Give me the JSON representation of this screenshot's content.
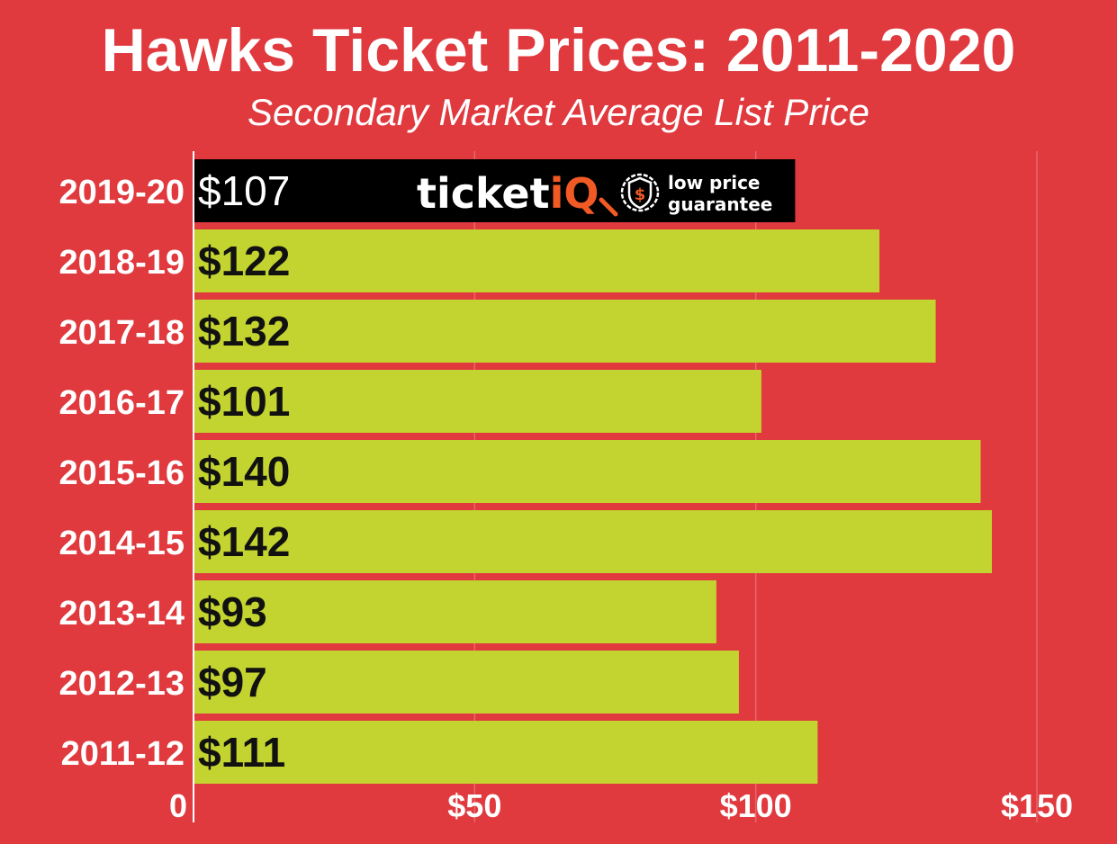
{
  "chart_data": {
    "type": "bar",
    "orientation": "horizontal",
    "title": "Hawks Ticket Prices: 2011-2020",
    "subtitle": "Secondary Market Average List Price",
    "categories": [
      "2019-20",
      "2018-19",
      "2017-18",
      "2016-17",
      "2015-16",
      "2014-15",
      "2013-14",
      "2012-13",
      "2011-12"
    ],
    "values": [
      107,
      122,
      132,
      101,
      140,
      142,
      93,
      97,
      111
    ],
    "data_labels": [
      "$107",
      "$122",
      "$132",
      "$101",
      "$140",
      "$142",
      "$93",
      "$97",
      "$111"
    ],
    "xlim": [
      0,
      150
    ],
    "x_ticks": [
      0,
      50,
      100,
      150
    ],
    "x_tick_labels": [
      "0",
      "$50",
      "$100",
      "$150"
    ],
    "grid": true,
    "colors": {
      "background": "#e0393e",
      "bar": "#c3d32f",
      "highlight_bar": "#000000",
      "grid": "#e8686b",
      "text": "#ffffff",
      "label": "#111111",
      "brand_accent": "#f15a24"
    }
  },
  "logo": {
    "brand_prefix": "ticket",
    "brand_suffix": "iQ",
    "tagline_line1": "low price",
    "tagline_line2": "guarantee"
  }
}
